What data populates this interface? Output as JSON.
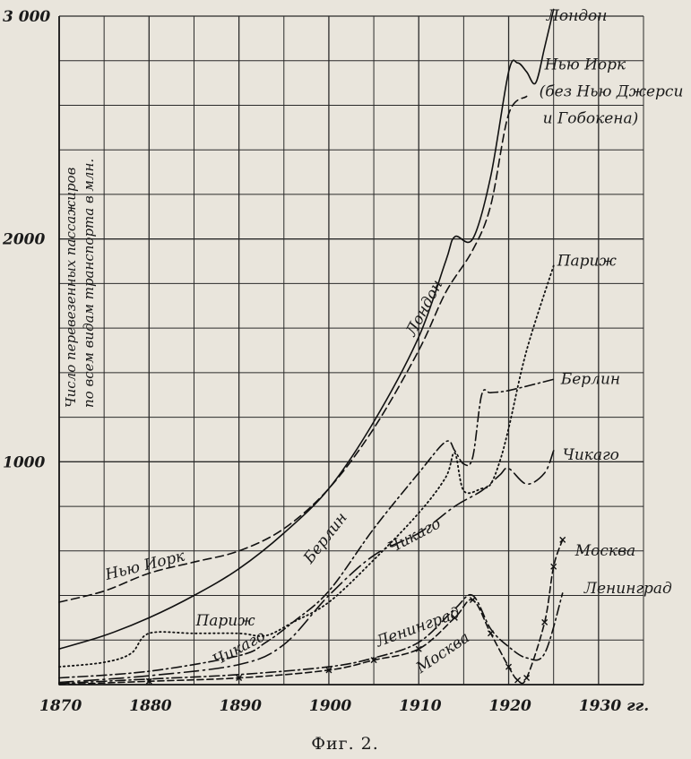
{
  "chart_data": {
    "type": "line",
    "ylabel_lines": [
      "Число перевезенных пассажиров",
      "по всем видам транспорта в млн."
    ],
    "caption": "Фиг. 2.",
    "x_ticks": [
      {
        "value": 1870,
        "label": "1870"
      },
      {
        "value": 1880,
        "label": "1880"
      },
      {
        "value": 1890,
        "label": "1890"
      },
      {
        "value": 1900,
        "label": "1900"
      },
      {
        "value": 1910,
        "label": "1910"
      },
      {
        "value": 1920,
        "label": "1920"
      },
      {
        "value": 1930,
        "label": "1930 гг."
      }
    ],
    "y_ticks": [
      {
        "value": 1000,
        "label": "1000"
      },
      {
        "value": 2000,
        "label": "2000"
      },
      {
        "value": 3000,
        "label": "3 000"
      }
    ],
    "xlim": [
      1870,
      1935
    ],
    "ylim": [
      0,
      3000
    ],
    "grid": true,
    "series": [
      {
        "name": "Лондон",
        "style": "solid",
        "x": [
          1870,
          1875,
          1880,
          1885,
          1890,
          1895,
          1900,
          1905,
          1910,
          1913,
          1914,
          1916,
          1918,
          1920,
          1921,
          1922,
          1923,
          1924,
          1925
        ],
        "y": [
          160,
          220,
          300,
          400,
          520,
          680,
          880,
          1180,
          1560,
          1900,
          2010,
          2000,
          2280,
          2750,
          2790,
          2750,
          2700,
          2860,
          3030
        ]
      },
      {
        "name": "Нью Иорк (без Нью Джерси и Гобокена)",
        "style": "dashed",
        "x": [
          1870,
          1875,
          1880,
          1885,
          1890,
          1895,
          1900,
          1905,
          1910,
          1913,
          1916,
          1918,
          1920,
          1922
        ],
        "y": [
          370,
          420,
          500,
          550,
          600,
          700,
          880,
          1150,
          1500,
          1760,
          1950,
          2150,
          2560,
          2640
        ]
      },
      {
        "name": "Париж",
        "style": "dotted",
        "x": [
          1870,
          1875,
          1878,
          1880,
          1885,
          1890,
          1893,
          1896,
          1900,
          1905,
          1910,
          1913,
          1914,
          1915,
          1917,
          1918,
          1919,
          1920,
          1922,
          1925
        ],
        "y": [
          80,
          100,
          140,
          230,
          230,
          230,
          220,
          280,
          370,
          560,
          770,
          930,
          1040,
          870,
          880,
          900,
          1000,
          1150,
          1500,
          1880
        ]
      },
      {
        "name": "Берлин",
        "style": "dashdot",
        "x": [
          1870,
          1880,
          1890,
          1893,
          1896,
          1900,
          1905,
          1910,
          1913,
          1914,
          1915,
          1916,
          1917,
          1918,
          1920,
          1925
        ],
        "y": [
          30,
          60,
          130,
          190,
          280,
          420,
          700,
          950,
          1090,
          1050,
          990,
          1020,
          1300,
          1310,
          1320,
          1370
        ]
      },
      {
        "name": "Чикаго",
        "style": "longdash-dot",
        "x": [
          1870,
          1880,
          1890,
          1895,
          1900,
          1905,
          1910,
          1914,
          1917,
          1919,
          1920,
          1922,
          1924,
          1925
        ],
        "y": [
          10,
          40,
          90,
          180,
          400,
          580,
          680,
          800,
          870,
          940,
          970,
          900,
          950,
          1050
        ]
      },
      {
        "name": "Ленинград",
        "style": "dashdot",
        "x": [
          1870,
          1880,
          1890,
          1900,
          1905,
          1910,
          1914,
          1916,
          1918,
          1920,
          1922,
          1924,
          1926
        ],
        "y": [
          5,
          25,
          45,
          80,
          120,
          190,
          340,
          400,
          250,
          170,
          120,
          140,
          410
        ]
      },
      {
        "name": "Москва",
        "style": "crossed-dash",
        "x": [
          1870,
          1880,
          1890,
          1900,
          1905,
          1910,
          1914,
          1916,
          1918,
          1920,
          1921,
          1922,
          1924,
          1925,
          1926
        ],
        "y": [
          0,
          15,
          30,
          65,
          110,
          160,
          300,
          380,
          230,
          80,
          20,
          30,
          280,
          530,
          650
        ]
      }
    ],
    "annotations": [
      {
        "text": "Лондон",
        "x": 1924.2,
        "y": 2980,
        "rotate": 0
      },
      {
        "text": "Нью Иорк",
        "x": 1924.0,
        "y": 2760,
        "rotate": 0
      },
      {
        "text": "(без Нью Джерси",
        "x": 1923.4,
        "y": 2640,
        "rotate": 0
      },
      {
        "text": "и  Гобокена)",
        "x": 1923.8,
        "y": 2520,
        "rotate": 0
      },
      {
        "text": "Париж",
        "x": 1925.4,
        "y": 1880,
        "rotate": 0
      },
      {
        "text": "Берлин",
        "x": 1925.8,
        "y": 1350,
        "rotate": 0
      },
      {
        "text": "Чикаго",
        "x": 1926.0,
        "y": 1010,
        "rotate": 0
      },
      {
        "text": "Москва",
        "x": 1927.4,
        "y": 580,
        "rotate": 0
      },
      {
        "text": "Ленинград",
        "x": 1928.4,
        "y": 410,
        "rotate": 0
      },
      {
        "text": "Лондон",
        "x": 1909.5,
        "y": 1560,
        "rotate": -62
      },
      {
        "text": "Нью  Иорк",
        "x": 1875.3,
        "y": 470,
        "rotate": -14
      },
      {
        "text": "Берлин",
        "x": 1898.0,
        "y": 540,
        "rotate": -52
      },
      {
        "text": "Чикаго",
        "x": 1907.0,
        "y": 590,
        "rotate": -28
      },
      {
        "text": "Париж",
        "x": 1885.2,
        "y": 265,
        "rotate": 0
      },
      {
        "text": "Чикаго",
        "x": 1887.5,
        "y": 85,
        "rotate": -28
      },
      {
        "text": "Ленинград",
        "x": 1905.5,
        "y": 170,
        "rotate": -20
      },
      {
        "text": "Москва",
        "x": 1910.2,
        "y": 50,
        "rotate": -34
      }
    ]
  }
}
